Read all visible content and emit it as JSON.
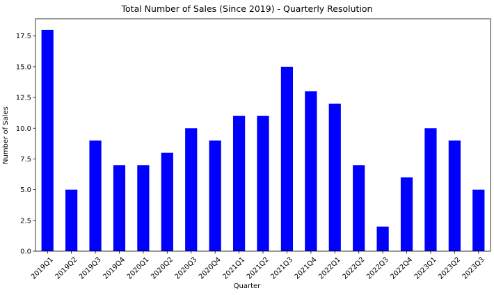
{
  "chart_data": {
    "type": "bar",
    "title": "Total Number of Sales (Since 2019) - Quarterly Resolution",
    "xlabel": "Quarter",
    "ylabel": "Number of Sales",
    "categories": [
      "2019Q1",
      "2019Q2",
      "2019Q3",
      "2019Q4",
      "2020Q1",
      "2020Q2",
      "2020Q3",
      "2020Q4",
      "2021Q1",
      "2021Q2",
      "2021Q3",
      "2021Q4",
      "2022Q1",
      "2022Q2",
      "2022Q3",
      "2022Q4",
      "2023Q1",
      "2023Q2",
      "2023Q3"
    ],
    "values": [
      18,
      5,
      9,
      7,
      7,
      8,
      10,
      9,
      11,
      11,
      15,
      13,
      12,
      7,
      2,
      6,
      10,
      9,
      5
    ],
    "ylim": [
      0,
      18.9
    ],
    "yticks": [
      0.0,
      2.5,
      5.0,
      7.5,
      10.0,
      12.5,
      15.0,
      17.5
    ],
    "ytick_labels": [
      "0.0",
      "2.5",
      "5.0",
      "7.5",
      "10.0",
      "12.5",
      "15.0",
      "17.5"
    ],
    "bar_color": "#0000ff",
    "grid": false,
    "legend": "none"
  }
}
